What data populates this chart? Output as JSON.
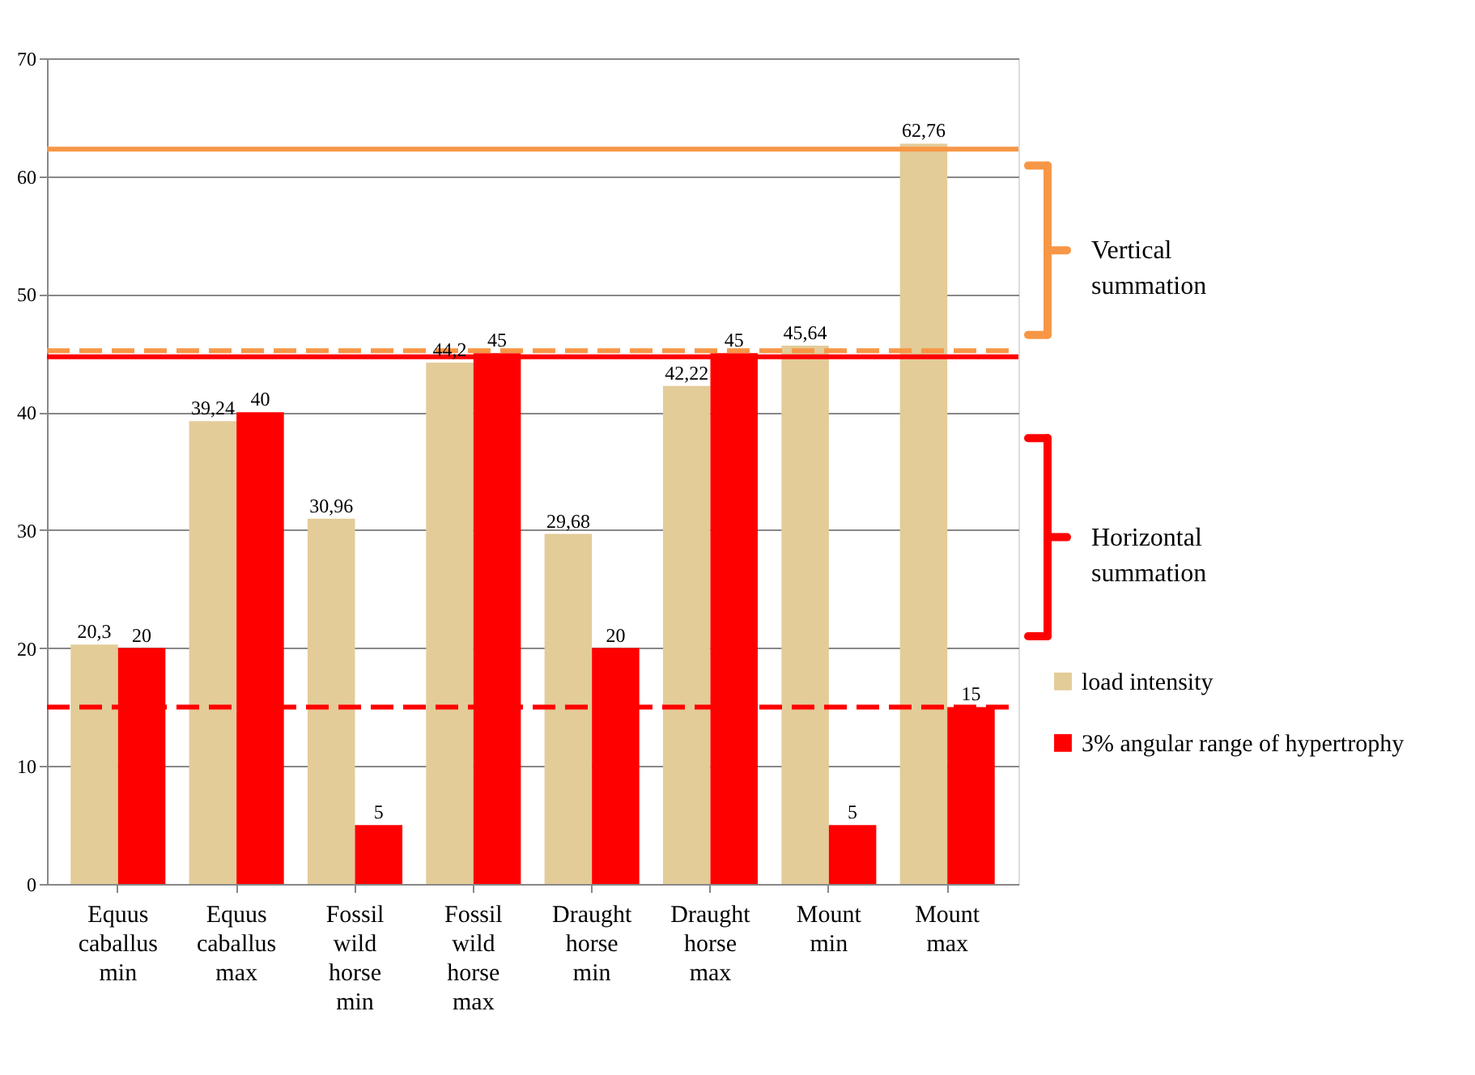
{
  "chart_data": {
    "type": "bar",
    "categories": [
      "Equus caballus min",
      "Equus caballus max",
      "Fossil wild horse min",
      "Fossil wild horse max",
      "Draught horse min",
      "Draught horse max",
      "Mount min",
      "Mount max"
    ],
    "series": [
      {
        "name": "load intensity",
        "color": "#e3cc98",
        "values": [
          20.3,
          39.24,
          30.96,
          44.2,
          29.68,
          42.22,
          45.64,
          62.76
        ],
        "value_labels": [
          "20,3",
          "39,24",
          "30,96",
          "44,2",
          "29,68",
          "42,22",
          "45,64",
          "62,76"
        ]
      },
      {
        "name": "3% angular range of hypertrophy",
        "color": "#ff0000",
        "values": [
          20,
          40,
          5,
          45,
          20,
          45,
          5,
          15
        ],
        "value_labels": [
          "20",
          "40",
          "5",
          "45",
          "20",
          "45",
          "5",
          "15"
        ]
      }
    ],
    "ylim": [
      0,
      70
    ],
    "yticks": [
      0,
      10,
      20,
      30,
      40,
      50,
      60,
      70
    ],
    "grid": "y",
    "legend": "right",
    "ref_lines": [
      {
        "axis": "y",
        "value": 62.3,
        "color": "#f79646",
        "line_style": "solid"
      },
      {
        "axis": "y",
        "value": 45.2,
        "color": "#f79646",
        "line_style": "dashed"
      },
      {
        "axis": "y",
        "value": 44.7,
        "color": "#ff0000",
        "line_style": "solid"
      },
      {
        "axis": "y",
        "value": 15,
        "color": "#ff0000",
        "line_style": "dashed"
      }
    ],
    "annotations": [
      "Vertical summation",
      "Horizontal summation"
    ]
  }
}
